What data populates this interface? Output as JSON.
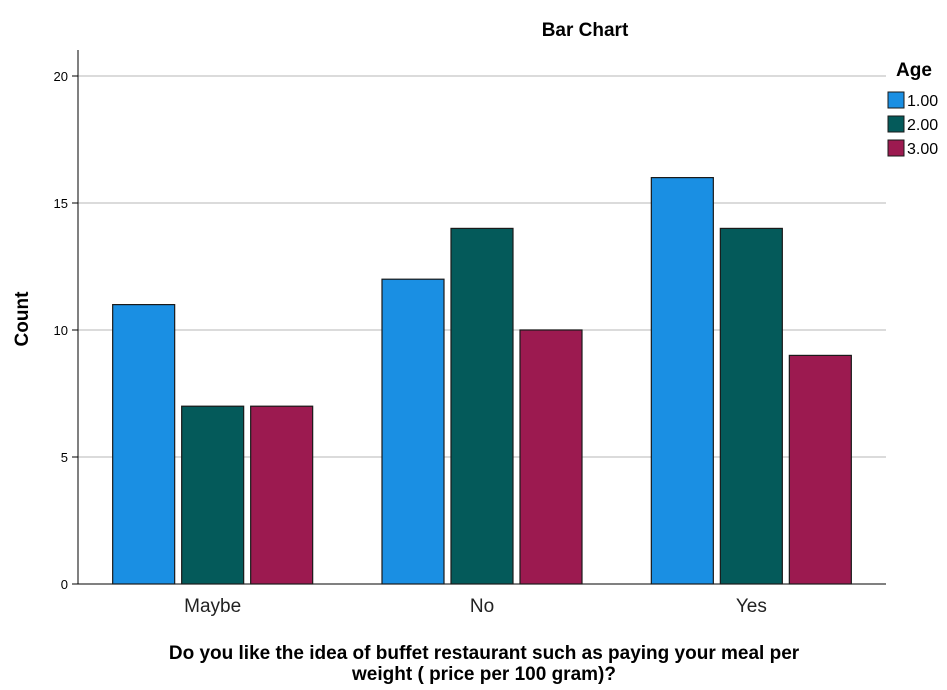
{
  "chart_data": {
    "type": "bar",
    "title": "Bar Chart",
    "xlabel": "Do you like the idea of buffet restaurant such as paying your meal per weight ( price per 100 gram)?",
    "ylabel": "Count",
    "categories": [
      "Maybe",
      "No",
      "Yes"
    ],
    "series": [
      {
        "name": "1.00",
        "values": [
          11,
          12,
          16
        ],
        "color": "#1a8fe3"
      },
      {
        "name": "2.00",
        "values": [
          7,
          14,
          14
        ],
        "color": "#045a5a"
      },
      {
        "name": "3.00",
        "values": [
          7,
          10,
          9
        ],
        "color": "#9c1a50"
      }
    ],
    "ylim": [
      0,
      20
    ],
    "yticks": [
      0,
      5,
      10,
      15,
      20
    ],
    "grid": true,
    "legend": {
      "title": "Age",
      "position": "top-right"
    }
  }
}
